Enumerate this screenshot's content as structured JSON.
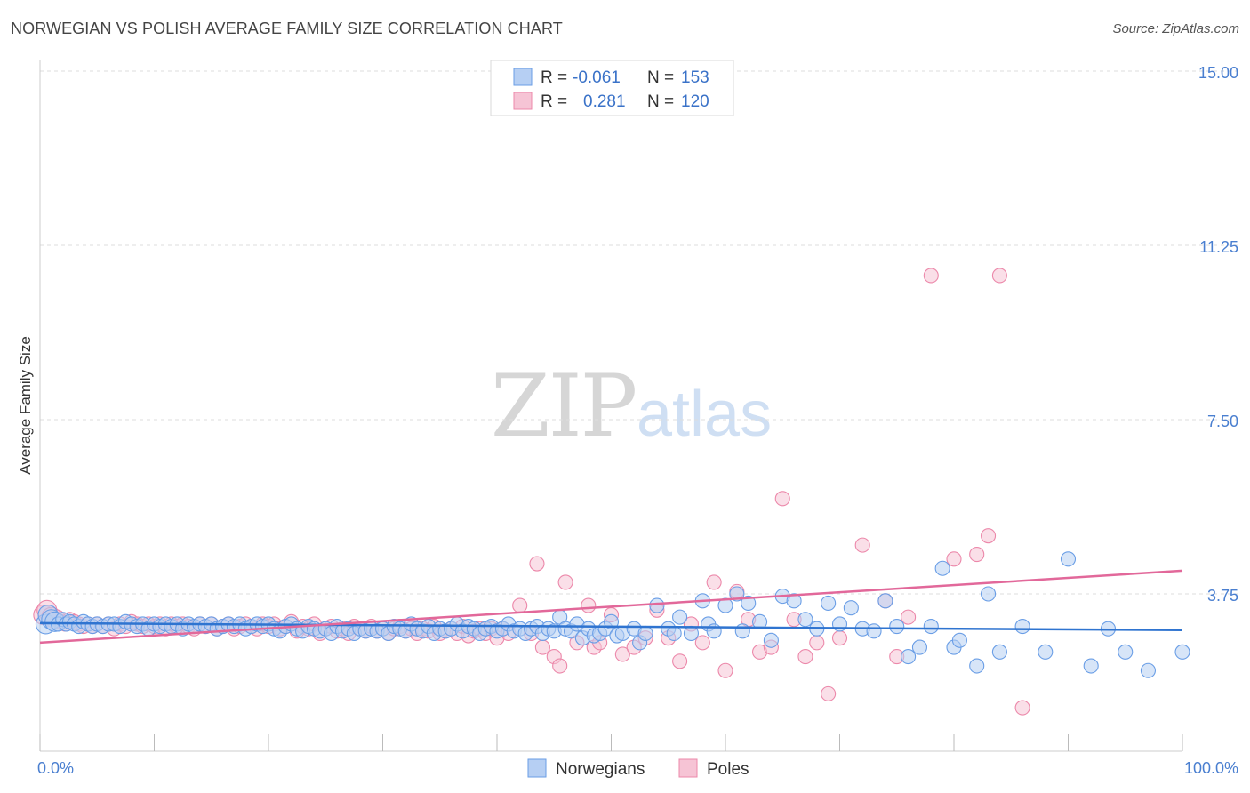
{
  "title": "NORWEGIAN VS POLISH AVERAGE FAMILY SIZE CORRELATION CHART",
  "source": "Source: ZipAtlas.com",
  "watermark": {
    "zip": "ZIP",
    "atlas": "atlas"
  },
  "colors": {
    "norwegians": "#6a9ee6",
    "norwegians_fill": "#b6cff3",
    "poles": "#ec88aa",
    "poles_fill": "#f6c4d5",
    "norwegians_line": "#2f74d0",
    "poles_line": "#e2689a",
    "tick": "#4a7fd0"
  },
  "stats_legend": {
    "rows": [
      {
        "r_label": "R =",
        "r_value": "-0.061",
        "n_label": "N =",
        "n_value": "153"
      },
      {
        "r_label": "R =",
        "r_value": "0.281",
        "n_label": "N =",
        "n_value": "120"
      }
    ]
  },
  "chart_data": {
    "type": "scatter",
    "title": "NORWEGIAN VS POLISH AVERAGE FAMILY SIZE CORRELATION CHART",
    "xlabel": "",
    "ylabel": "Average Family Size",
    "xlim": [
      0,
      100
    ],
    "ylim": [
      0,
      16
    ],
    "x_tick_labels": [
      "0.0%",
      "100.0%"
    ],
    "y_ticks": [
      3.75,
      7.5,
      11.25,
      15.0
    ],
    "y_tick_labels": [
      "3.75",
      "7.50",
      "11.25",
      "15.00"
    ],
    "grid": "horizontal dashed",
    "legend": "bottom-center",
    "series": [
      {
        "name": "Norwegians",
        "trend": {
          "x": [
            0,
            100
          ],
          "y": [
            3.12,
            2.97
          ]
        },
        "points": [
          [
            0.5,
            3.1
          ],
          [
            0.7,
            3.3
          ],
          [
            1,
            3.2
          ],
          [
            1.3,
            3.15
          ],
          [
            1.6,
            3.1
          ],
          [
            2,
            3.2
          ],
          [
            2.3,
            3.1
          ],
          [
            2.6,
            3.15
          ],
          [
            3,
            3.1
          ],
          [
            3.4,
            3.05
          ],
          [
            3.8,
            3.15
          ],
          [
            4.2,
            3.1
          ],
          [
            4.6,
            3.05
          ],
          [
            5,
            3.1
          ],
          [
            5.5,
            3.05
          ],
          [
            6,
            3.1
          ],
          [
            6.5,
            3.1
          ],
          [
            7,
            3.05
          ],
          [
            7.5,
            3.15
          ],
          [
            8,
            3.1
          ],
          [
            8.5,
            3.05
          ],
          [
            9,
            3.1
          ],
          [
            9.5,
            3.0
          ],
          [
            10,
            3.1
          ],
          [
            10.5,
            3.05
          ],
          [
            11,
            3.1
          ],
          [
            11.5,
            3.05
          ],
          [
            12,
            3.1
          ],
          [
            12.5,
            3.0
          ],
          [
            13,
            3.1
          ],
          [
            13.5,
            3.05
          ],
          [
            14,
            3.1
          ],
          [
            14.5,
            3.05
          ],
          [
            15,
            3.1
          ],
          [
            15.5,
            3.0
          ],
          [
            16,
            3.05
          ],
          [
            16.5,
            3.1
          ],
          [
            17,
            3.05
          ],
          [
            17.5,
            3.1
          ],
          [
            18,
            3.0
          ],
          [
            18.5,
            3.05
          ],
          [
            19,
            3.1
          ],
          [
            19.5,
            3.05
          ],
          [
            20,
            3.1
          ],
          [
            20.5,
            3.0
          ],
          [
            21,
            2.95
          ],
          [
            21.5,
            3.05
          ],
          [
            22,
            3.1
          ],
          [
            22.5,
            3.0
          ],
          [
            23,
            2.95
          ],
          [
            23.5,
            3.05
          ],
          [
            24,
            3.0
          ],
          [
            24.5,
            2.95
          ],
          [
            25,
            3.0
          ],
          [
            25.5,
            2.9
          ],
          [
            26,
            3.05
          ],
          [
            26.5,
            2.95
          ],
          [
            27,
            3.0
          ],
          [
            27.5,
            2.9
          ],
          [
            28,
            3.0
          ],
          [
            28.5,
            2.95
          ],
          [
            29,
            3.0
          ],
          [
            29.5,
            2.95
          ],
          [
            30,
            3.0
          ],
          [
            30.5,
            2.9
          ],
          [
            31,
            3.05
          ],
          [
            31.5,
            3.0
          ],
          [
            32,
            2.95
          ],
          [
            32.5,
            3.1
          ],
          [
            33,
            3.0
          ],
          [
            33.5,
            2.95
          ],
          [
            34,
            3.05
          ],
          [
            34.5,
            2.9
          ],
          [
            35,
            3.0
          ],
          [
            35.5,
            2.95
          ],
          [
            36,
            3.0
          ],
          [
            36.5,
            3.1
          ],
          [
            37,
            2.95
          ],
          [
            37.5,
            3.05
          ],
          [
            38,
            3.0
          ],
          [
            38.5,
            2.9
          ],
          [
            39,
            3.0
          ],
          [
            39.5,
            3.05
          ],
          [
            40,
            2.95
          ],
          [
            40.5,
            3.0
          ],
          [
            41,
            3.1
          ],
          [
            41.5,
            2.95
          ],
          [
            42,
            3.0
          ],
          [
            42.5,
            2.9
          ],
          [
            43,
            3.0
          ],
          [
            43.5,
            3.05
          ],
          [
            44,
            2.9
          ],
          [
            44.5,
            3.0
          ],
          [
            45,
            2.95
          ],
          [
            45.5,
            3.25
          ],
          [
            46,
            3.0
          ],
          [
            46.5,
            2.95
          ],
          [
            47,
            3.1
          ],
          [
            47.5,
            2.8
          ],
          [
            48,
            3.0
          ],
          [
            48.5,
            2.85
          ],
          [
            49,
            2.9
          ],
          [
            49.5,
            3.0
          ],
          [
            50,
            3.15
          ],
          [
            50.5,
            2.85
          ],
          [
            51,
            2.9
          ],
          [
            52,
            3.0
          ],
          [
            52.5,
            2.7
          ],
          [
            53,
            2.9
          ],
          [
            54,
            3.5
          ],
          [
            55,
            3.0
          ],
          [
            55.5,
            2.9
          ],
          [
            56,
            3.25
          ],
          [
            57,
            2.9
          ],
          [
            58,
            3.6
          ],
          [
            58.5,
            3.1
          ],
          [
            59,
            2.95
          ],
          [
            60,
            3.5
          ],
          [
            61,
            3.75
          ],
          [
            61.5,
            2.95
          ],
          [
            62,
            3.55
          ],
          [
            63,
            3.15
          ],
          [
            64,
            2.75
          ],
          [
            65,
            3.7
          ],
          [
            66,
            3.6
          ],
          [
            67,
            3.2
          ],
          [
            68,
            3.0
          ],
          [
            69,
            3.55
          ],
          [
            70,
            3.1
          ],
          [
            71,
            3.45
          ],
          [
            72,
            3.0
          ],
          [
            73,
            2.95
          ],
          [
            74,
            3.6
          ],
          [
            75,
            3.05
          ],
          [
            76,
            2.4
          ],
          [
            77,
            2.6
          ],
          [
            78,
            3.05
          ],
          [
            79,
            4.3
          ],
          [
            80,
            2.6
          ],
          [
            80.5,
            2.75
          ],
          [
            82,
            2.2
          ],
          [
            83,
            3.75
          ],
          [
            84,
            2.5
          ],
          [
            86,
            3.05
          ],
          [
            88,
            2.5
          ],
          [
            90,
            4.5
          ],
          [
            92,
            2.2
          ],
          [
            93.5,
            3.0
          ],
          [
            95,
            2.5
          ],
          [
            97,
            2.1
          ],
          [
            100,
            2.5
          ]
        ]
      },
      {
        "name": "Poles",
        "trend": {
          "x": [
            0,
            100
          ],
          "y": [
            2.7,
            4.25
          ]
        },
        "points": [
          [
            0.3,
            3.3
          ],
          [
            0.6,
            3.4
          ],
          [
            1,
            3.25
          ],
          [
            1.4,
            3.2
          ],
          [
            1.8,
            3.15
          ],
          [
            2.2,
            3.1
          ],
          [
            2.6,
            3.2
          ],
          [
            3,
            3.15
          ],
          [
            3.4,
            3.1
          ],
          [
            3.8,
            3.05
          ],
          [
            4.2,
            3.1
          ],
          [
            4.6,
            3.05
          ],
          [
            5,
            3.1
          ],
          [
            5.5,
            3.05
          ],
          [
            6,
            3.1
          ],
          [
            6.5,
            3.0
          ],
          [
            7,
            3.1
          ],
          [
            7.5,
            3.05
          ],
          [
            8,
            3.15
          ],
          [
            8.5,
            3.1
          ],
          [
            9,
            3.05
          ],
          [
            9.5,
            3.1
          ],
          [
            10,
            3.05
          ],
          [
            10.5,
            3.1
          ],
          [
            11,
            3.0
          ],
          [
            11.5,
            3.1
          ],
          [
            12,
            3.05
          ],
          [
            12.5,
            3.1
          ],
          [
            13,
            3.05
          ],
          [
            13.5,
            3.0
          ],
          [
            14,
            3.1
          ],
          [
            14.5,
            3.05
          ],
          [
            15,
            3.1
          ],
          [
            15.5,
            3.0
          ],
          [
            16,
            3.05
          ],
          [
            16.5,
            3.1
          ],
          [
            17,
            3.0
          ],
          [
            17.5,
            3.05
          ],
          [
            18,
            3.1
          ],
          [
            18.5,
            3.05
          ],
          [
            19,
            3.0
          ],
          [
            19.5,
            3.1
          ],
          [
            20,
            3.05
          ],
          [
            20.5,
            3.1
          ],
          [
            21,
            3.0
          ],
          [
            21.5,
            3.05
          ],
          [
            22,
            3.15
          ],
          [
            22.5,
            2.95
          ],
          [
            23,
            3.05
          ],
          [
            23.5,
            3.0
          ],
          [
            24,
            3.1
          ],
          [
            24.5,
            2.9
          ],
          [
            25,
            3.0
          ],
          [
            25.5,
            3.05
          ],
          [
            26,
            2.95
          ],
          [
            26.5,
            3.0
          ],
          [
            27,
            2.9
          ],
          [
            27.5,
            3.05
          ],
          [
            28,
            3.0
          ],
          [
            28.5,
            2.95
          ],
          [
            29,
            3.05
          ],
          [
            29.5,
            2.95
          ],
          [
            30,
            3.0
          ],
          [
            30.5,
            2.9
          ],
          [
            31,
            3.0
          ],
          [
            31.5,
            3.05
          ],
          [
            32,
            2.95
          ],
          [
            32.5,
            3.0
          ],
          [
            33,
            2.9
          ],
          [
            33.5,
            3.0
          ],
          [
            34,
            2.95
          ],
          [
            34.5,
            3.05
          ],
          [
            35,
            2.9
          ],
          [
            35.5,
            2.95
          ],
          [
            36,
            3.0
          ],
          [
            36.5,
            2.9
          ],
          [
            37,
            3.05
          ],
          [
            37.5,
            2.85
          ],
          [
            38,
            2.95
          ],
          [
            38.5,
            3.0
          ],
          [
            39,
            2.9
          ],
          [
            39.5,
            3.0
          ],
          [
            40,
            2.8
          ],
          [
            40.5,
            3.0
          ],
          [
            41,
            2.9
          ],
          [
            42,
            3.5
          ],
          [
            43,
            2.9
          ],
          [
            43.5,
            4.4
          ],
          [
            44,
            2.6
          ],
          [
            45,
            2.4
          ],
          [
            45.5,
            2.2
          ],
          [
            46,
            4.0
          ],
          [
            47,
            2.7
          ],
          [
            48,
            3.5
          ],
          [
            48.5,
            2.6
          ],
          [
            49,
            2.7
          ],
          [
            50,
            3.3
          ],
          [
            51,
            2.45
          ],
          [
            52,
            2.6
          ],
          [
            53,
            2.8
          ],
          [
            54,
            3.4
          ],
          [
            55,
            2.8
          ],
          [
            56,
            2.3
          ],
          [
            57,
            3.1
          ],
          [
            58,
            2.7
          ],
          [
            59,
            4.0
          ],
          [
            60,
            2.1
          ],
          [
            61,
            3.8
          ],
          [
            62,
            3.2
          ],
          [
            63,
            2.5
          ],
          [
            64,
            2.6
          ],
          [
            65,
            5.8
          ],
          [
            66,
            3.2
          ],
          [
            67,
            2.4
          ],
          [
            68,
            2.7
          ],
          [
            69,
            1.6
          ],
          [
            70,
            2.8
          ],
          [
            72,
            4.8
          ],
          [
            74,
            3.6
          ],
          [
            75,
            2.4
          ],
          [
            76,
            3.25
          ],
          [
            78,
            10.6
          ],
          [
            80,
            4.5
          ],
          [
            82,
            4.6
          ],
          [
            83,
            5.0
          ],
          [
            84,
            10.6
          ],
          [
            86,
            1.3
          ]
        ]
      }
    ]
  }
}
